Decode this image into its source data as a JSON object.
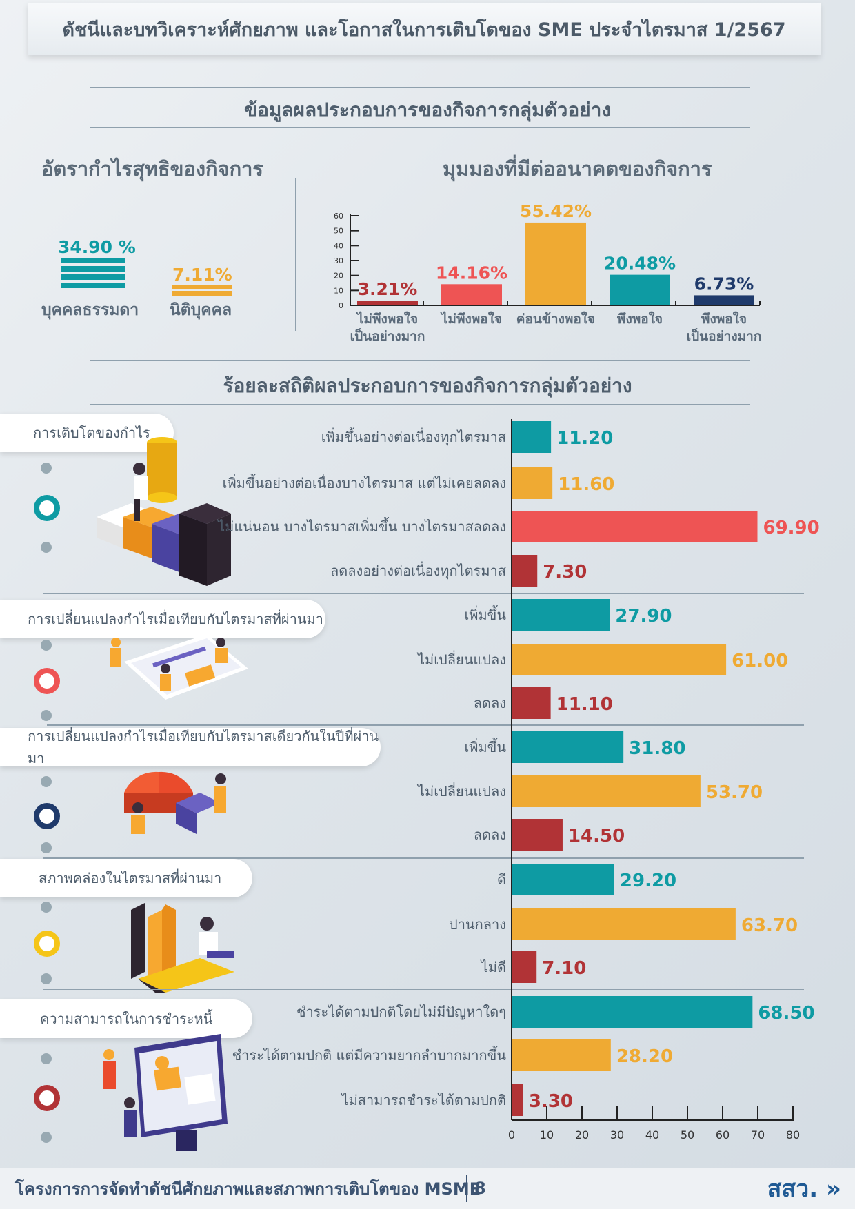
{
  "header": {
    "title": "ดัชนีและบทวิเคราะห์ศักยภาพ และโอกาสในการเติบโตของ SME ประจำไตรมาส 1/2567"
  },
  "section1": {
    "title": "ข้อมูลผลประกอบการของกิจการกลุ่มตัวอย่าง",
    "profit": {
      "title": "อัตรากำไรสุทธิของกิจการ",
      "items": [
        {
          "label": "บุคคลธรรมดา",
          "value": "34.90 %",
          "color": "#0e9ba3"
        },
        {
          "label": "นิติบุคคล",
          "value": "7.11%",
          "color": "#efaa33"
        }
      ]
    },
    "outlook": {
      "title": "มุมมองที่มีต่ออนาคตของกิจการ"
    }
  },
  "section2": {
    "title": "ร้อยละสถิติผลประกอบการของกิจการกลุ่มตัวอย่าง"
  },
  "footer": {
    "text": "โครงการการจัดทำดัชนีศักยภาพและสภาพการเติบโตของ MSME",
    "page": "8",
    "logo": "สสว."
  },
  "chart_data": [
    {
      "type": "bar",
      "title": "มุมมองที่มีต่ออนาคตของกิจการ",
      "categories": [
        [
          "ไม่พึงพอใจ",
          "เป็นอย่างมาก"
        ],
        [
          "ไม่พึงพอใจ"
        ],
        [
          "ค่อนข้างพอใจ"
        ],
        [
          "พึงพอใจ"
        ],
        [
          "พึงพอใจ",
          "เป็นอย่างมาก"
        ]
      ],
      "values": [
        3.21,
        14.16,
        55.42,
        20.48,
        6.73
      ],
      "data_labels": [
        "3.21%",
        "14.16%",
        "55.42%",
        "20.48%",
        "6.73%"
      ],
      "colors": [
        "#b13336",
        "#ee5454",
        "#efaa33",
        "#0e9ba3",
        "#1f3a6b"
      ],
      "yticks": [
        "0",
        "10",
        "20",
        "30",
        "40",
        "50",
        "60"
      ],
      "ylim": [
        0,
        60
      ]
    },
    {
      "type": "bar",
      "orientation": "horizontal",
      "xlim": [
        0,
        80
      ],
      "xticks": [
        "0",
        "10",
        "20",
        "30",
        "40",
        "50",
        "60",
        "70",
        "80"
      ],
      "colors": {
        "teal": "#0e9ba3",
        "orange": "#efaa33",
        "red": "#ee5454",
        "darkred": "#b13336"
      },
      "groups": [
        {
          "name": "การเติบโตของกำไร",
          "ring_color": "#0e9ba3",
          "bars": [
            {
              "label": "เพิ่มขึ้นอย่างต่อเนื่องทุกไตรมาส",
              "value": 11.2,
              "text": "11.20",
              "color": "#0e9ba3"
            },
            {
              "label": "เพิ่มขึ้นอย่างต่อเนื่องบางไตรมาส แต่ไม่เคยลดลง",
              "value": 11.6,
              "text": "11.60",
              "color": "#efaa33"
            },
            {
              "label": "ไม่แน่นอน บางไตรมาสเพิ่มขึ้น บางไตรมาสลดลง",
              "value": 69.9,
              "text": "69.90",
              "color": "#ee5454"
            },
            {
              "label": "ลดลงอย่างต่อเนื่องทุกไตรมาส",
              "value": 7.3,
              "text": "7.30",
              "color": "#b13336"
            }
          ]
        },
        {
          "name": "การเปลี่ยนแปลงกำไรเมื่อเทียบกับไตรมาสที่ผ่านมา",
          "ring_color": "#ee5454",
          "bars": [
            {
              "label": "เพิ่มขึ้น",
              "value": 27.9,
              "text": "27.90",
              "color": "#0e9ba3"
            },
            {
              "label": "ไม่เปลี่ยนแปลง",
              "value": 61.0,
              "text": "61.00",
              "color": "#efaa33"
            },
            {
              "label": "ลดลง",
              "value": 11.1,
              "text": "11.10",
              "color": "#b13336"
            }
          ]
        },
        {
          "name": "การเปลี่ยนแปลงกำไรเมื่อเทียบกับไตรมาสเดียวกันในปีที่ผ่านมา",
          "ring_color": "#1f3a6b",
          "bars": [
            {
              "label": "เพิ่มขึ้น",
              "value": 31.8,
              "text": "31.80",
              "color": "#0e9ba3"
            },
            {
              "label": "ไม่เปลี่ยนแปลง",
              "value": 53.7,
              "text": "53.70",
              "color": "#efaa33"
            },
            {
              "label": "ลดลง",
              "value": 14.5,
              "text": "14.50",
              "color": "#b13336"
            }
          ]
        },
        {
          "name": "สภาพคล่องในไตรมาสที่ผ่านมา",
          "ring_color": "#f5c518",
          "bars": [
            {
              "label": "ดี",
              "value": 29.2,
              "text": "29.20",
              "color": "#0e9ba3"
            },
            {
              "label": "ปานกลาง",
              "value": 63.7,
              "text": "63.70",
              "color": "#efaa33"
            },
            {
              "label": "ไม่ดี",
              "value": 7.1,
              "text": "7.10",
              "color": "#b13336"
            }
          ]
        },
        {
          "name": "ความสามารถในการชำระหนี้",
          "ring_color": "#b13336",
          "bars": [
            {
              "label": "ชำระได้ตามปกติโดยไม่มีปัญหาใดๆ",
              "value": 68.5,
              "text": "68.50",
              "color": "#0e9ba3"
            },
            {
              "label": "ชำระได้ตามปกติ แต่มีความยากลำบากมากขึ้น",
              "value": 28.2,
              "text": "28.20",
              "color": "#efaa33"
            },
            {
              "label": "ไม่สามารถชำระได้ตามปกติ",
              "value": 3.3,
              "text": "3.30",
              "color": "#b13336"
            }
          ]
        }
      ]
    }
  ]
}
